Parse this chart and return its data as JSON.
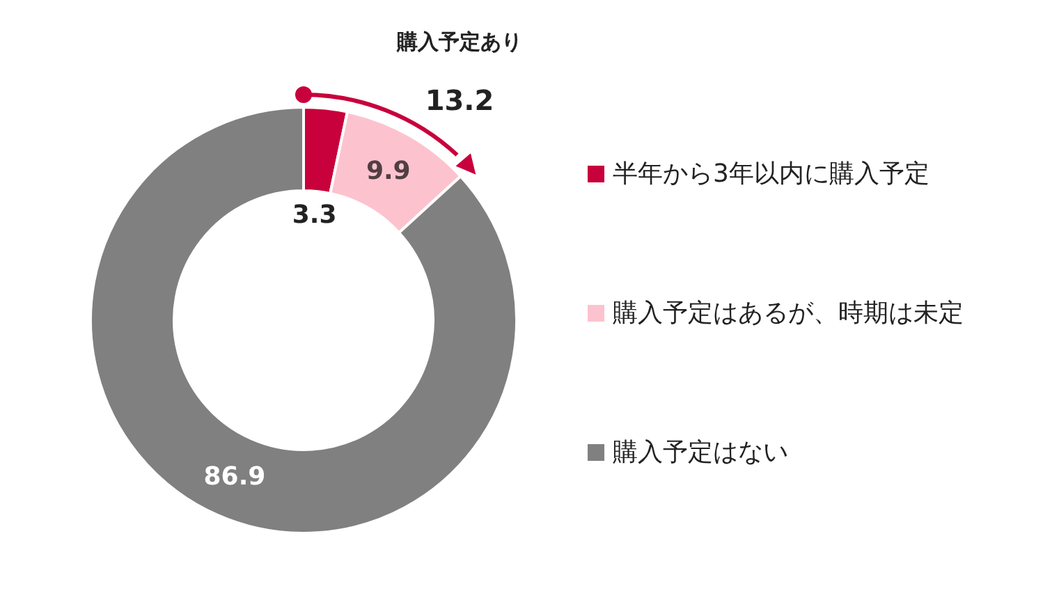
{
  "chart_data": {
    "type": "donut",
    "categories": [
      "半年から3年以内に購入予定",
      "購入予定はあるが、時期は未定",
      "購入予定はない"
    ],
    "values": [
      3.3,
      9.9,
      86.9
    ],
    "colors": [
      "#c8003c",
      "#fcc3cf",
      "#808080"
    ],
    "data_labels": true,
    "legend": "right",
    "annotations": [
      "購入予定あり",
      "13.2"
    ]
  }
}
